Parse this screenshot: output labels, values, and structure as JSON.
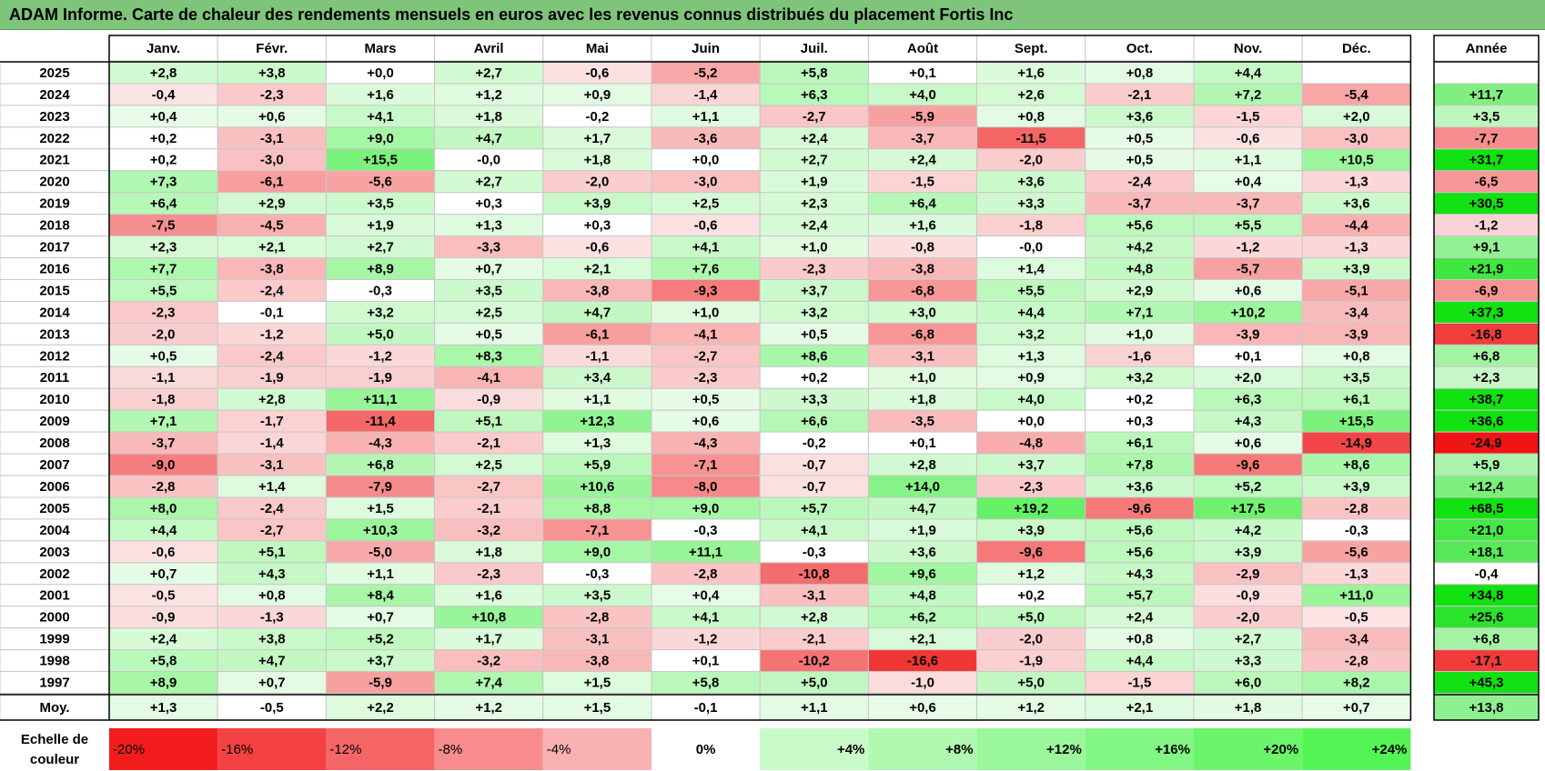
{
  "title": "ADAM Informe. Carte de chaleur des rendements mensuels en euros avec les revenus connus distribués du placement Fortis Inc",
  "chart_data": {
    "type": "heatmap",
    "months": [
      "Janv.",
      "Févr.",
      "Mars",
      "Avril",
      "Mai",
      "Juin",
      "Juil.",
      "Août",
      "Sept.",
      "Oct.",
      "Nov.",
      "Déc."
    ],
    "year_header": "Année",
    "rows": [
      {
        "year": "2025",
        "values": [
          "+2,8",
          "+3,8",
          "+0,0",
          "+2,7",
          "-0,6",
          "-5,2",
          "+5,8",
          "+0,1",
          "+1,6",
          "+0,8",
          "+4,4",
          ""
        ],
        "annual": ""
      },
      {
        "year": "2024",
        "values": [
          "-0,4",
          "-2,3",
          "+1,6",
          "+1,2",
          "+0,9",
          "-1,4",
          "+6,3",
          "+4,0",
          "+2,6",
          "-2,1",
          "+7,2",
          "-5,4"
        ],
        "annual": "+11,7"
      },
      {
        "year": "2023",
        "values": [
          "+0,4",
          "+0,6",
          "+4,1",
          "+1,8",
          "-0,2",
          "+1,1",
          "-2,7",
          "-5,9",
          "+0,8",
          "+3,6",
          "-1,5",
          "+2,0"
        ],
        "annual": "+3,5"
      },
      {
        "year": "2022",
        "values": [
          "+0,2",
          "-3,1",
          "+9,0",
          "+4,7",
          "+1,7",
          "-3,6",
          "+2,4",
          "-3,7",
          "-11,5",
          "+0,5",
          "-0,6",
          "-3,0"
        ],
        "annual": "-7,7"
      },
      {
        "year": "2021",
        "values": [
          "+0,2",
          "-3,0",
          "+15,5",
          "-0,0",
          "+1,8",
          "+0,0",
          "+2,7",
          "+2,4",
          "-2,0",
          "+0,5",
          "+1,1",
          "+10,5"
        ],
        "annual": "+31,7"
      },
      {
        "year": "2020",
        "values": [
          "+7,3",
          "-6,1",
          "-5,6",
          "+2,7",
          "-2,0",
          "-3,0",
          "+1,9",
          "-1,5",
          "+3,6",
          "-2,4",
          "+0,4",
          "-1,3"
        ],
        "annual": "-6,5"
      },
      {
        "year": "2019",
        "values": [
          "+6,4",
          "+2,9",
          "+3,5",
          "+0,3",
          "+3,9",
          "+2,5",
          "+2,3",
          "+6,4",
          "+3,3",
          "-3,7",
          "-3,7",
          "+3,6"
        ],
        "annual": "+30,5"
      },
      {
        "year": "2018",
        "values": [
          "-7,5",
          "-4,5",
          "+1,9",
          "+1,3",
          "+0,3",
          "-0,6",
          "+2,4",
          "+1,6",
          "-1,8",
          "+5,6",
          "+5,5",
          "-4,4"
        ],
        "annual": "-1,2"
      },
      {
        "year": "2017",
        "values": [
          "+2,3",
          "+2,1",
          "+2,7",
          "-3,3",
          "-0,6",
          "+4,1",
          "+1,0",
          "-0,8",
          "-0,0",
          "+4,2",
          "-1,2",
          "-1,3"
        ],
        "annual": "+9,1"
      },
      {
        "year": "2016",
        "values": [
          "+7,7",
          "-3,8",
          "+8,9",
          "+0,7",
          "+2,1",
          "+7,6",
          "-2,3",
          "-3,8",
          "+1,4",
          "+4,8",
          "-5,7",
          "+3,9"
        ],
        "annual": "+21,9"
      },
      {
        "year": "2015",
        "values": [
          "+5,5",
          "-2,4",
          "-0,3",
          "+3,5",
          "-3,8",
          "-9,3",
          "+3,7",
          "-6,8",
          "+5,5",
          "+2,9",
          "+0,6",
          "-5,1"
        ],
        "annual": "-6,9"
      },
      {
        "year": "2014",
        "values": [
          "-2,3",
          "-0,1",
          "+3,2",
          "+2,5",
          "+4,7",
          "+1,0",
          "+3,2",
          "+3,0",
          "+4,4",
          "+7,1",
          "+10,2",
          "-3,4"
        ],
        "annual": "+37,3"
      },
      {
        "year": "2013",
        "values": [
          "-2,0",
          "-1,2",
          "+5,0",
          "+0,5",
          "-6,1",
          "-4,1",
          "+0,5",
          "-6,8",
          "+3,2",
          "+1,0",
          "-3,9",
          "-3,9"
        ],
        "annual": "-16,8"
      },
      {
        "year": "2012",
        "values": [
          "+0,5",
          "-2,4",
          "-1,2",
          "+8,3",
          "-1,1",
          "-2,7",
          "+8,6",
          "-3,1",
          "+1,3",
          "-1,6",
          "+0,1",
          "+0,8"
        ],
        "annual": "+6,8"
      },
      {
        "year": "2011",
        "values": [
          "-1,1",
          "-1,9",
          "-1,9",
          "-4,1",
          "+3,4",
          "-2,3",
          "+0,2",
          "+1,0",
          "+0,9",
          "+3,2",
          "+2,0",
          "+3,5"
        ],
        "annual": "+2,3"
      },
      {
        "year": "2010",
        "values": [
          "-1,8",
          "+2,8",
          "+11,1",
          "-0,9",
          "+1,1",
          "+0,5",
          "+3,3",
          "+1,8",
          "+4,0",
          "+0,2",
          "+6,3",
          "+6,1"
        ],
        "annual": "+38,7"
      },
      {
        "year": "2009",
        "values": [
          "+7,1",
          "-1,7",
          "-11,4",
          "+5,1",
          "+12,3",
          "+0,6",
          "+6,6",
          "-3,5",
          "+0,0",
          "+0,3",
          "+4,3",
          "+15,5"
        ],
        "annual": "+36,6"
      },
      {
        "year": "2008",
        "values": [
          "-3,7",
          "-1,4",
          "-4,3",
          "-2,1",
          "+1,3",
          "-4,3",
          "-0,2",
          "+0,1",
          "-4,8",
          "+6,1",
          "+0,6",
          "-14,9"
        ],
        "annual": "-24,9"
      },
      {
        "year": "2007",
        "values": [
          "-9,0",
          "-3,1",
          "+6,8",
          "+2,5",
          "+5,9",
          "-7,1",
          "-0,7",
          "+2,8",
          "+3,7",
          "+7,8",
          "-9,6",
          "+8,6"
        ],
        "annual": "+5,9"
      },
      {
        "year": "2006",
        "values": [
          "-2,8",
          "+1,4",
          "-7,9",
          "-2,7",
          "+10,6",
          "-8,0",
          "-0,7",
          "+14,0",
          "-2,3",
          "+3,6",
          "+5,2",
          "+3,9"
        ],
        "annual": "+12,4"
      },
      {
        "year": "2005",
        "values": [
          "+8,0",
          "-2,4",
          "+1,5",
          "-2,1",
          "+8,8",
          "+9,0",
          "+5,7",
          "+4,7",
          "+19,2",
          "-9,6",
          "+17,5",
          "-2,8"
        ],
        "annual": "+68,5"
      },
      {
        "year": "2004",
        "values": [
          "+4,4",
          "-2,7",
          "+10,3",
          "-3,2",
          "-7,1",
          "-0,3",
          "+4,1",
          "+1,9",
          "+3,9",
          "+5,6",
          "+4,2",
          "-0,3"
        ],
        "annual": "+21,0"
      },
      {
        "year": "2003",
        "values": [
          "-0,6",
          "+5,1",
          "-5,0",
          "+1,8",
          "+9,0",
          "+11,1",
          "-0,3",
          "+3,6",
          "-9,6",
          "+5,6",
          "+3,9",
          "-5,6"
        ],
        "annual": "+18,1"
      },
      {
        "year": "2002",
        "values": [
          "+0,7",
          "+4,3",
          "+1,1",
          "-2,3",
          "-0,3",
          "-2,8",
          "-10,8",
          "+9,6",
          "+1,2",
          "+4,3",
          "-2,9",
          "-1,3"
        ],
        "annual": "-0,4"
      },
      {
        "year": "2001",
        "values": [
          "-0,5",
          "+0,8",
          "+8,4",
          "+1,6",
          "+3,5",
          "+0,4",
          "-3,1",
          "+4,8",
          "+0,2",
          "+5,7",
          "-0,9",
          "+11,0"
        ],
        "annual": "+34,8"
      },
      {
        "year": "2000",
        "values": [
          "-0,9",
          "-1,3",
          "+0,7",
          "+10,8",
          "-2,8",
          "+4,1",
          "+2,8",
          "+6,2",
          "+5,0",
          "+2,4",
          "-2,0",
          "-0,5"
        ],
        "annual": "+25,6"
      },
      {
        "year": "1999",
        "values": [
          "+2,4",
          "+3,8",
          "+5,2",
          "+1,7",
          "-3,1",
          "-1,2",
          "-2,1",
          "+2,1",
          "-2,0",
          "+0,8",
          "+2,7",
          "-3,4"
        ],
        "annual": "+6,8"
      },
      {
        "year": "1998",
        "values": [
          "+5,8",
          "+4,7",
          "+3,7",
          "-3,2",
          "-3,8",
          "+0,1",
          "-10,2",
          "-16,6",
          "-1,9",
          "+4,4",
          "+3,3",
          "-2,8"
        ],
        "annual": "-17,1"
      },
      {
        "year": "1997",
        "values": [
          "+8,9",
          "+0,7",
          "-5,9",
          "+7,4",
          "+1,5",
          "+5,8",
          "+5,0",
          "-1,0",
          "+5,0",
          "-1,5",
          "+6,0",
          "+8,2"
        ],
        "annual": "+45,3"
      }
    ],
    "average": {
      "label": "Moy.",
      "values": [
        "+1,3",
        "-0,5",
        "+2,2",
        "+1,2",
        "+1,5",
        "-0,1",
        "+1,1",
        "+0,6",
        "+1,2",
        "+2,1",
        "+1,8",
        "+0,7"
      ],
      "annual": "+13,8"
    },
    "scale": {
      "label_line1": "Echelle de",
      "label_line2": "couleur",
      "items": [
        {
          "label": "-20%",
          "value": -20
        },
        {
          "label": "-16%",
          "value": -16
        },
        {
          "label": "-12%",
          "value": -12
        },
        {
          "label": "-8%",
          "value": -8
        },
        {
          "label": "-4%",
          "value": -4
        },
        {
          "label": "0%",
          "value": 0
        },
        {
          "label": "+4%",
          "value": 4
        },
        {
          "label": "+8%",
          "value": 8
        },
        {
          "label": "+12%",
          "value": 12
        },
        {
          "label": "+16%",
          "value": 16
        },
        {
          "label": "+20%",
          "value": 20
        },
        {
          "label": "+24%",
          "value": 24
        }
      ]
    }
  }
}
